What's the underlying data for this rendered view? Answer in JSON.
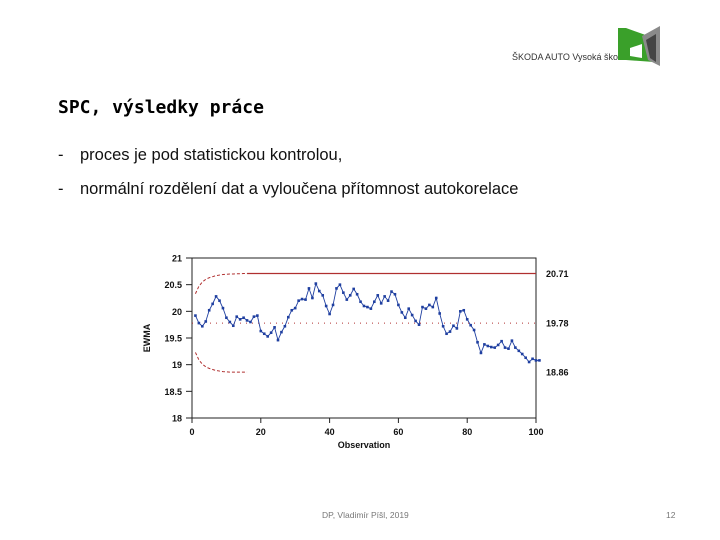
{
  "logo": {
    "text": "ŠKODA AUTO Vysoká škola"
  },
  "slide": {
    "title": "SPC, výsledky práce",
    "bullets": [
      {
        "dash": "-",
        "text": "proces je pod statistickou kontrolou,"
      },
      {
        "dash": "-",
        "text": "normální rozdělení dat a vyloučena přítomnost autokorelace"
      }
    ]
  },
  "footer": {
    "author": "DP, Vladimír Píšl, 2019",
    "page": "12"
  },
  "colors": {
    "series": "#1f3fa0",
    "limits": "#b03030",
    "logo_green": "#3aa02a",
    "logo_dark": "#333333"
  },
  "chart_data": {
    "type": "line",
    "xlabel": "Observation",
    "ylabel": "EWMA",
    "xlim": [
      0,
      100
    ],
    "ylim": [
      18,
      21
    ],
    "x_ticks": [
      "0",
      "20",
      "40",
      "60",
      "80",
      "100"
    ],
    "y_ticks": [
      "18",
      "18.5",
      "19",
      "19.5",
      "20",
      "20.5",
      "21"
    ],
    "limit_labels": [
      "20.71",
      "19.78",
      "18.86"
    ],
    "center": 19.78,
    "ucl": 20.71,
    "lcl": 18.86,
    "ucl_start": [
      20.33,
      20.47,
      20.55,
      20.6,
      20.63,
      20.65,
      20.67,
      20.68,
      20.69,
      20.695,
      20.7,
      20.7,
      20.705,
      20.705,
      20.71,
      20.71
    ],
    "lcl_start": [
      19.23,
      19.09,
      19.01,
      18.96,
      18.93,
      18.91,
      18.89,
      18.88,
      18.87,
      18.865,
      18.86,
      18.86,
      18.86,
      18.86,
      18.86,
      18.86
    ],
    "series": [
      {
        "values": [
          19.92,
          19.78,
          19.72,
          19.81,
          20.02,
          20.14,
          20.28,
          20.2,
          20.06,
          19.88,
          19.8,
          19.73,
          19.9,
          19.85,
          19.88,
          19.83,
          19.8,
          19.9,
          19.92,
          19.63,
          19.58,
          19.53,
          19.6,
          19.7,
          19.46,
          19.61,
          19.72,
          19.89,
          20.02,
          20.06,
          20.2,
          20.23,
          20.22,
          20.43,
          20.25,
          20.52,
          20.38,
          20.3,
          20.1,
          19.95,
          20.12,
          20.43,
          20.5,
          20.35,
          20.22,
          20.3,
          20.42,
          20.32,
          20.18,
          20.1,
          20.08,
          20.05,
          20.18,
          20.3,
          20.15,
          20.28,
          20.2,
          20.37,
          20.32,
          20.12,
          19.98,
          19.88,
          20.05,
          19.93,
          19.82,
          19.75,
          20.08,
          20.05,
          20.12,
          20.08,
          20.25,
          19.96,
          19.72,
          19.58,
          19.62,
          19.73,
          19.68,
          20.0,
          20.02,
          19.85,
          19.74,
          19.65,
          19.42,
          19.22,
          19.38,
          19.35,
          19.33,
          19.32,
          19.37,
          19.44,
          19.32,
          19.3,
          19.45,
          19.32,
          19.26,
          19.2,
          19.13,
          19.05,
          19.11,
          19.08,
          19.08
        ]
      }
    ]
  }
}
